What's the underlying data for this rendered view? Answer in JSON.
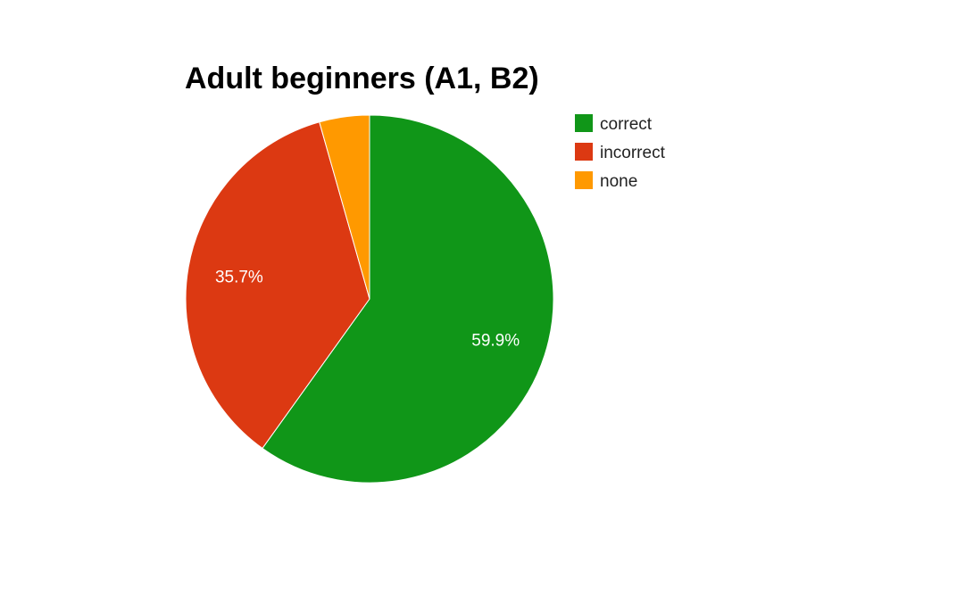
{
  "chart_data": {
    "type": "pie",
    "title": "Adult beginners (A1, B2)",
    "categories": [
      "correct",
      "incorrect",
      "none"
    ],
    "values": [
      59.9,
      35.7,
      4.4
    ],
    "slice_labels": [
      "59.9%",
      "35.7%",
      ""
    ],
    "colors": [
      "#109618",
      "#dc3912",
      "#ff9900"
    ],
    "legend": {
      "position": "right",
      "items": [
        "correct",
        "incorrect",
        "none"
      ]
    }
  }
}
